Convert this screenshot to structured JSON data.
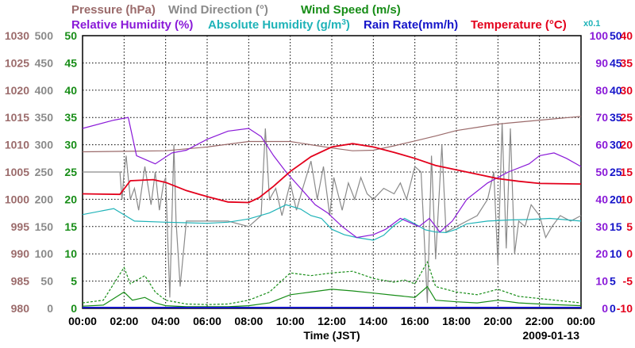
{
  "chart_data": {
    "type": "line",
    "date": "2009-01-13",
    "xlabel": "Time (JST)",
    "x_ticks": [
      "00:00",
      "02:00",
      "04:00",
      "06:00",
      "08:00",
      "10:00",
      "12:00",
      "14:00",
      "16:00",
      "18:00",
      "20:00",
      "22:00",
      "00:00"
    ],
    "title_row1": [
      {
        "label": "Pressure (hPa)",
        "color": "#9b6b6b"
      },
      {
        "label": "Wind Direction (°)",
        "color": "#8a8a8a"
      },
      {
        "label": "Wind Speed (m/s)",
        "color": "#178d17"
      }
    ],
    "title_row2": [
      {
        "label": "Relative Humidity (%)",
        "color": "#8a1ad8"
      },
      {
        "label": "Absolute Humidity (g/m",
        "sup": "3",
        "tail": ")",
        "color": "#1fb3b8"
      },
      {
        "label": "Rain Rate(mm/h)",
        "color": "#1515c9"
      },
      {
        "label": "Temperature (°C)",
        "color": "#e3001b"
      }
    ],
    "x01_label": "x0.1",
    "axes": {
      "pressure": {
        "label": "Pressure (hPa)",
        "range": [
          980,
          1030
        ],
        "ticks": [
          "1030",
          "1025",
          "1020",
          "1015",
          "1010",
          "1005",
          "1000",
          "995",
          "990",
          "985",
          "980"
        ],
        "color": "#9b6b6b"
      },
      "wind_direction": {
        "label": "Wind Direction (°)",
        "range": [
          0,
          500
        ],
        "ticks": [
          "500",
          "450",
          "400",
          "350",
          "300",
          "250",
          "200",
          "150",
          "100",
          "50",
          "0"
        ],
        "color": "#8a8a8a"
      },
      "wind_speed": {
        "label": "Wind Speed (m/s)",
        "range": [
          0,
          50
        ],
        "ticks": [
          "50",
          "45",
          "40",
          "35",
          "30",
          "25",
          "20",
          "15",
          "10",
          "5",
          "0"
        ],
        "color": "#178d17"
      },
      "relative_humidity": {
        "label": "Relative Humidity (%)",
        "range": [
          0,
          100
        ],
        "ticks": [
          "100",
          "90",
          "80",
          "70",
          "60",
          "50",
          "40",
          "30",
          "20",
          "10",
          "0"
        ],
        "color": "#8a1ad8"
      },
      "rain_absolute_humidity": {
        "label": "Rain Rate / Absolute Humidity",
        "range": [
          0,
          50
        ],
        "ticks": [
          "50",
          "45",
          "40",
          "35",
          "30",
          "25",
          "20",
          "15",
          "10",
          "5",
          "0"
        ],
        "color": "#1515c9"
      },
      "temperature": {
        "label": "Temperature (°C)",
        "range": [
          -10,
          40
        ],
        "ticks": [
          "40",
          "35",
          "30",
          "25",
          "20",
          "15",
          "10",
          "5",
          "0",
          "-5",
          "-10"
        ],
        "color": "#e3001b"
      }
    },
    "series": [
      {
        "name": "Pressure",
        "unit": "hPa",
        "color": "#9b6b6b",
        "points": [
          [
            0,
            1008.7
          ],
          [
            2,
            1008.8
          ],
          [
            4,
            1008.9
          ],
          [
            6,
            1009.6
          ],
          [
            8,
            1010.6
          ],
          [
            10,
            1010.6
          ],
          [
            11,
            1010.0
          ],
          [
            12,
            1009.4
          ],
          [
            13,
            1008.9
          ],
          [
            14,
            1009.0
          ],
          [
            15,
            1009.8
          ],
          [
            16,
            1010.7
          ],
          [
            17,
            1011.6
          ],
          [
            18,
            1012.6
          ],
          [
            19,
            1013.2
          ],
          [
            20,
            1013.8
          ],
          [
            22,
            1014.5
          ],
          [
            24,
            1015.2
          ]
        ]
      },
      {
        "name": "Relative Humidity",
        "unit": "%",
        "color": "#8a1ad8",
        "points": [
          [
            0,
            66
          ],
          [
            1.5,
            69
          ],
          [
            2.2,
            70
          ],
          [
            2.6,
            56
          ],
          [
            3.5,
            53
          ],
          [
            4.3,
            57
          ],
          [
            5,
            58
          ],
          [
            6,
            62
          ],
          [
            7,
            65
          ],
          [
            8,
            66
          ],
          [
            8.6,
            63
          ],
          [
            9.2,
            56
          ],
          [
            9.8,
            50
          ],
          [
            10.5,
            44
          ],
          [
            11.2,
            38
          ],
          [
            11.8,
            35
          ],
          [
            12.5,
            30
          ],
          [
            13.2,
            26
          ],
          [
            14,
            27
          ],
          [
            14.6,
            29
          ],
          [
            15.3,
            33
          ],
          [
            16.2,
            30
          ],
          [
            16.7,
            33
          ],
          [
            17.2,
            28
          ],
          [
            17.8,
            32
          ],
          [
            18.5,
            40
          ],
          [
            19.5,
            46
          ],
          [
            20.5,
            50
          ],
          [
            21.5,
            53
          ],
          [
            22,
            56
          ],
          [
            22.7,
            57
          ],
          [
            23.3,
            55
          ],
          [
            24,
            52
          ]
        ]
      },
      {
        "name": "Absolute Humidity",
        "unit": "g/m3",
        "color": "#1fb3b8",
        "points": [
          [
            0,
            17.2
          ],
          [
            1.5,
            18.3
          ],
          [
            2.5,
            16.0
          ],
          [
            4,
            15.8
          ],
          [
            5,
            15.7
          ],
          [
            6,
            15.6
          ],
          [
            7,
            15.8
          ],
          [
            8,
            16.4
          ],
          [
            9,
            17.5
          ],
          [
            9.8,
            19.0
          ],
          [
            10.5,
            18.2
          ],
          [
            11,
            17.0
          ],
          [
            11.5,
            16.5
          ],
          [
            12,
            14.5
          ],
          [
            12.6,
            13.5
          ],
          [
            13.2,
            13.0
          ],
          [
            14,
            12.5
          ],
          [
            14.5,
            13.4
          ],
          [
            15,
            15.2
          ],
          [
            15.5,
            16.5
          ],
          [
            16,
            15.5
          ],
          [
            16.5,
            14.4
          ],
          [
            17,
            14.0
          ],
          [
            17.5,
            13.9
          ],
          [
            18,
            14.5
          ],
          [
            18.5,
            15.5
          ],
          [
            19.5,
            16.0
          ],
          [
            20.5,
            16.2
          ],
          [
            21.5,
            16.3
          ],
          [
            22.5,
            16.5
          ],
          [
            24,
            16.0
          ]
        ]
      },
      {
        "name": "Temperature",
        "unit": "°C",
        "color": "#e3001b",
        "points": [
          [
            0,
            11.0
          ],
          [
            1.8,
            10.9
          ],
          [
            2.3,
            13.4
          ],
          [
            3.4,
            13.6
          ],
          [
            4,
            13.1
          ],
          [
            5,
            11.6
          ],
          [
            6,
            10.5
          ],
          [
            7,
            9.5
          ],
          [
            8,
            9.4
          ],
          [
            8.5,
            10.3
          ],
          [
            9.2,
            12.4
          ],
          [
            10,
            15.1
          ],
          [
            11,
            17.8
          ],
          [
            12,
            19.6
          ],
          [
            13,
            20.2
          ],
          [
            14,
            19.6
          ],
          [
            15,
            18.6
          ],
          [
            16,
            17.5
          ],
          [
            17,
            16.2
          ],
          [
            18,
            15.4
          ],
          [
            19,
            14.6
          ],
          [
            20,
            13.8
          ],
          [
            21,
            13.3
          ],
          [
            22,
            12.9
          ],
          [
            24,
            12.8
          ]
        ]
      },
      {
        "name": "Wind Speed",
        "unit": "m/s",
        "color": "#178d17",
        "points": [
          [
            0,
            0.4
          ],
          [
            1,
            0.6
          ],
          [
            2,
            3.0
          ],
          [
            2.4,
            1.5
          ],
          [
            3,
            2.0
          ],
          [
            3.5,
            1.0
          ],
          [
            4,
            0.5
          ],
          [
            5,
            0.3
          ],
          [
            6,
            0.3
          ],
          [
            7,
            0.3
          ],
          [
            8,
            0.5
          ],
          [
            9,
            1.0
          ],
          [
            10,
            2.5
          ],
          [
            11,
            3.0
          ],
          [
            12,
            3.5
          ],
          [
            13,
            3.2
          ],
          [
            14,
            2.8
          ],
          [
            15,
            2.4
          ],
          [
            16,
            2.0
          ],
          [
            16.6,
            4.0
          ],
          [
            17,
            1.5
          ],
          [
            18,
            1.2
          ],
          [
            19,
            1.0
          ],
          [
            20,
            1.5
          ],
          [
            21,
            1.0
          ],
          [
            22,
            0.8
          ],
          [
            24,
            0.5
          ]
        ]
      },
      {
        "name": "Wind Speed (gust)",
        "unit": "m/s",
        "color": "#178d17",
        "dashed": true,
        "points": [
          [
            0,
            1.0
          ],
          [
            1,
            1.5
          ],
          [
            2,
            7.5
          ],
          [
            2.3,
            4.5
          ],
          [
            3,
            6.0
          ],
          [
            3.5,
            3.0
          ],
          [
            4,
            1.5
          ],
          [
            5,
            0.8
          ],
          [
            6,
            0.7
          ],
          [
            7,
            0.8
          ],
          [
            8,
            1.5
          ],
          [
            9,
            3.0
          ],
          [
            10,
            6.5
          ],
          [
            11,
            6.0
          ],
          [
            12,
            6.5
          ],
          [
            13,
            6.8
          ],
          [
            14,
            5.5
          ],
          [
            15,
            4.8
          ],
          [
            15.5,
            5.2
          ],
          [
            16,
            4.5
          ],
          [
            16.6,
            8.5
          ],
          [
            17,
            4.0
          ],
          [
            18,
            3.0
          ],
          [
            19,
            2.5
          ],
          [
            20,
            3.5
          ],
          [
            21,
            2.2
          ],
          [
            22,
            1.8
          ],
          [
            24,
            1.0
          ]
        ]
      },
      {
        "name": "Wind Direction",
        "unit": "°",
        "color": "#8a8a8a",
        "points": [
          [
            0,
            250
          ],
          [
            1.8,
            250
          ],
          [
            1.9,
            200
          ],
          [
            2.0,
            250
          ],
          [
            2.1,
            280
          ],
          [
            2.3,
            200
          ],
          [
            2.5,
            220
          ],
          [
            2.7,
            180
          ],
          [
            3.0,
            260
          ],
          [
            3.3,
            190
          ],
          [
            3.5,
            250
          ],
          [
            3.7,
            180
          ],
          [
            3.9,
            230
          ],
          [
            4.0,
            240
          ],
          [
            4.2,
            20
          ],
          [
            4.4,
            300
          ],
          [
            4.5,
            160
          ],
          [
            4.7,
            40
          ],
          [
            5.0,
            160
          ],
          [
            6.0,
            160
          ],
          [
            7.0,
            160
          ],
          [
            8.0,
            150
          ],
          [
            8.6,
            170
          ],
          [
            8.8,
            330
          ],
          [
            9.0,
            200
          ],
          [
            9.3,
            220
          ],
          [
            9.6,
            170
          ],
          [
            10.0,
            230
          ],
          [
            10.3,
            180
          ],
          [
            10.6,
            220
          ],
          [
            11.0,
            270
          ],
          [
            11.3,
            200
          ],
          [
            11.6,
            260
          ],
          [
            11.9,
            170
          ],
          [
            12.1,
            240
          ],
          [
            12.5,
            180
          ],
          [
            12.8,
            230
          ],
          [
            13.1,
            200
          ],
          [
            13.4,
            240
          ],
          [
            13.7,
            210
          ],
          [
            14.0,
            200
          ],
          [
            14.5,
            220
          ],
          [
            15.0,
            210
          ],
          [
            15.3,
            230
          ],
          [
            15.6,
            200
          ],
          [
            16.0,
            260
          ],
          [
            16.3,
            250
          ],
          [
            16.6,
            10
          ],
          [
            16.8,
            280
          ],
          [
            17.0,
            90
          ],
          [
            17.3,
            300
          ],
          [
            17.5,
            140
          ],
          [
            18.0,
            150
          ],
          [
            18.5,
            160
          ],
          [
            19.0,
            170
          ],
          [
            19.5,
            200
          ],
          [
            19.8,
            250
          ],
          [
            20.0,
            80
          ],
          [
            20.2,
            340
          ],
          [
            20.4,
            110
          ],
          [
            20.6,
            330
          ],
          [
            20.8,
            100
          ],
          [
            21.0,
            160
          ],
          [
            21.3,
            150
          ],
          [
            21.6,
            190
          ],
          [
            22.0,
            170
          ],
          [
            22.3,
            130
          ],
          [
            22.6,
            150
          ],
          [
            23.0,
            170
          ],
          [
            23.5,
            160
          ],
          [
            24.0,
            170
          ]
        ]
      }
    ]
  }
}
